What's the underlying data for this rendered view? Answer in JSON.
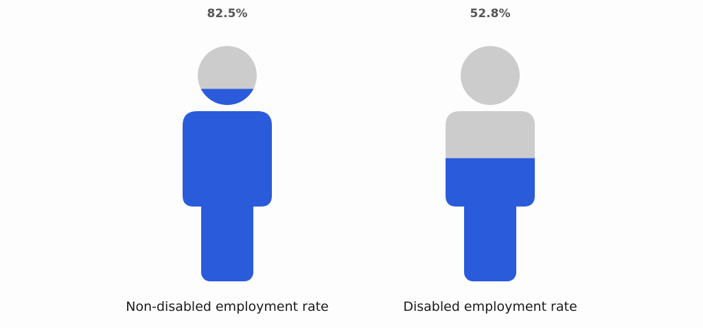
{
  "chart_data": {
    "type": "bar",
    "categories": [
      "Non-disabled employment rate",
      "Disabled employment rate"
    ],
    "values": [
      82.5,
      52.8
    ],
    "value_labels": [
      "82.5%",
      "52.8%"
    ],
    "title": "",
    "xlabel": "",
    "ylabel": "",
    "ylim": [
      0,
      100
    ],
    "grid": false,
    "legend": "none"
  },
  "colors": {
    "fill": "#2a5bdb",
    "empty": "#cccccc",
    "value_label": "#555555",
    "category_label": "#1a1a1a",
    "background": "#fdfdfd"
  },
  "icons": [
    "person-icon",
    "person-icon"
  ]
}
